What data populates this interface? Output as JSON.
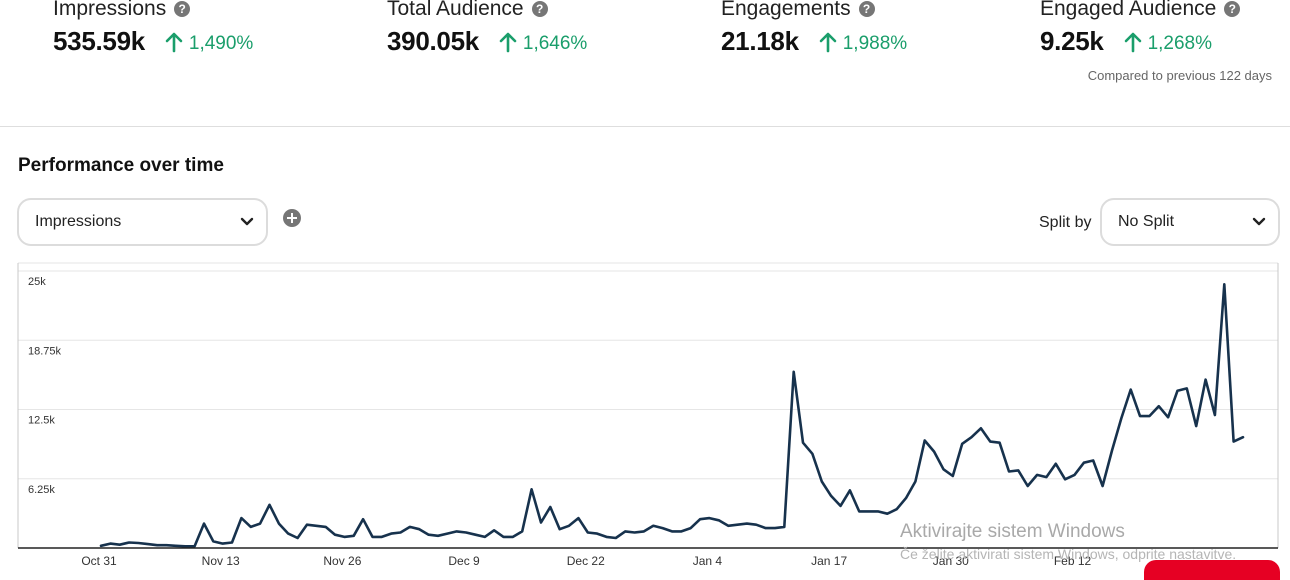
{
  "metrics": [
    {
      "title": "Impressions",
      "value": "535.59k",
      "change": "1,490%"
    },
    {
      "title": "Total Audience",
      "value": "390.05k",
      "change": "1,646%"
    },
    {
      "title": "Engagements",
      "value": "21.18k",
      "change": "1,988%"
    },
    {
      "title": "Engaged Audience",
      "value": "9.25k",
      "change": "1,268%"
    }
  ],
  "help_glyph": "?",
  "compare_text": "Compared to previous 122 days",
  "section_title": "Performance over time",
  "metric_select": {
    "value": "Impressions"
  },
  "split": {
    "label": "Split by",
    "value": "No Split"
  },
  "colors": {
    "line": "#17324d",
    "positive": "#1a9e6b",
    "brand_red": "#e60023"
  },
  "chart_data": {
    "type": "line",
    "title": "",
    "xlabel": "",
    "ylabel": "",
    "y_ticks": [
      6250,
      12500,
      18750,
      25000
    ],
    "y_tick_labels": [
      "6.25k",
      "12.5k",
      "18.75k",
      "25k"
    ],
    "ylim": [
      0,
      25000
    ],
    "x_tick_labels": [
      "Oct 31",
      "Nov 13",
      "Nov 26",
      "Dec 9",
      "Dec 22",
      "Jan 4",
      "Jan 17",
      "Jan 30",
      "Feb 12"
    ],
    "x_tick_every": 13,
    "grid": true,
    "series": [
      {
        "values": [
          200,
          400,
          300,
          500,
          450,
          350,
          250,
          250,
          200,
          150,
          150,
          2200,
          600,
          400,
          500,
          2700,
          1900,
          2200,
          3900,
          2200,
          1300,
          900,
          2100,
          2000,
          1900,
          1200,
          1000,
          1100,
          2600,
          1000,
          1000,
          1300,
          1400,
          1900,
          1700,
          1200,
          1100,
          1300,
          1500,
          1400,
          1200,
          1000,
          1600,
          1000,
          1000,
          1500,
          5300,
          2300,
          3700,
          1700,
          2000,
          2700,
          1400,
          1300,
          1000,
          900,
          1500,
          1400,
          1500,
          2000,
          1800,
          1500,
          1500,
          1800,
          2600,
          2700,
          2500,
          2000,
          2100,
          2200,
          2100,
          1800,
          1800,
          1900,
          15900,
          9500,
          8500,
          6000,
          4700,
          3800,
          5200,
          3300,
          3300,
          3300,
          3100,
          3500,
          4500,
          6000,
          9700,
          8700,
          7100,
          6500,
          9400,
          10000,
          10800,
          9600,
          9500,
          6900,
          7000,
          5600,
          6600,
          6400,
          7600,
          6200,
          6600,
          7700,
          7900,
          5600,
          8800,
          11700,
          14300,
          11900,
          11900,
          12800,
          11800,
          14200,
          14400,
          11000,
          15200,
          12000,
          23800,
          9600,
          10000
        ]
      }
    ]
  },
  "watermark": {
    "line1": "Aktivirajte sistem Windows",
    "line2": "Če želite aktivirati sistem Windows, odprite nastavitve."
  }
}
